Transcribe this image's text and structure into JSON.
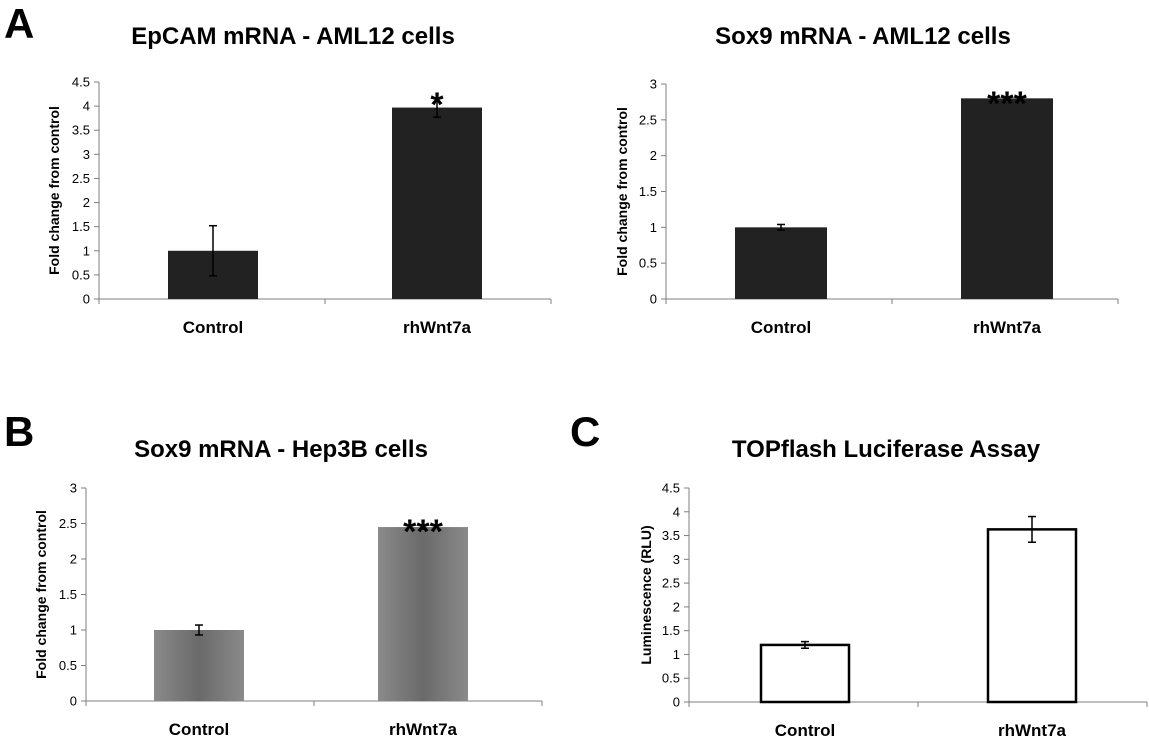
{
  "panels": [
    {
      "letter": "A"
    },
    {
      "letter": "B"
    },
    {
      "letter": "C"
    }
  ],
  "chart_data": [
    {
      "type": "bar",
      "title": "EpCAM mRNA - AML12 cells",
      "categories": [
        "Control",
        "rhWnt7a"
      ],
      "values": [
        1.0,
        3.97
      ],
      "errors": [
        0.52,
        0.2
      ],
      "significance": [
        "",
        "*"
      ],
      "ylabel": "Fold change from control",
      "xlabel": "",
      "ylim": [
        0,
        4.5
      ],
      "yticks": [
        "0",
        "0.5",
        "1",
        "1.5",
        "2",
        "2.5",
        "3",
        "3.5",
        "4",
        "4.5"
      ],
      "bar_color": "#222222",
      "bar_style": "solid",
      "grid": false
    },
    {
      "type": "bar",
      "title": "Sox9 mRNA - AML12 cells",
      "categories": [
        "Control",
        "rhWnt7a"
      ],
      "values": [
        1.0,
        2.8
      ],
      "errors": [
        0.04,
        0.02
      ],
      "significance": [
        "",
        "***"
      ],
      "ylabel": "Fold change from control",
      "xlabel": "",
      "ylim": [
        0,
        3
      ],
      "yticks": [
        "0",
        "0.5",
        "1",
        "1.5",
        "2",
        "2.5",
        "3"
      ],
      "bar_color": "#222222",
      "bar_style": "solid",
      "grid": false
    },
    {
      "type": "bar",
      "title": "Sox9 mRNA - Hep3B cells",
      "categories": [
        "Control",
        "rhWnt7a"
      ],
      "values": [
        1.0,
        2.45
      ],
      "errors": [
        0.07,
        0.03
      ],
      "significance": [
        "",
        "***"
      ],
      "ylabel": "Fold change from control",
      "xlabel": "",
      "ylim": [
        0,
        3
      ],
      "yticks": [
        "0",
        "0.5",
        "1",
        "1.5",
        "2",
        "2.5",
        "3"
      ],
      "bar_color": "#666666",
      "bar_style": "gradient",
      "grid": false
    },
    {
      "type": "bar",
      "title": "TOPflash Luciferase Assay",
      "categories": [
        "Control",
        "rhWnt7a"
      ],
      "values": [
        1.2,
        3.63
      ],
      "errors": [
        0.07,
        0.27
      ],
      "significance": [
        "",
        ""
      ],
      "ylabel": "Luminescence (RLU)",
      "xlabel": "",
      "ylim": [
        0,
        4.5
      ],
      "yticks": [
        "0",
        "0.5",
        "1",
        "1.5",
        "2",
        "2.5",
        "3",
        "3.5",
        "4",
        "4.5"
      ],
      "bar_color": "#ffffff",
      "bar_style": "outline",
      "grid": false
    }
  ]
}
